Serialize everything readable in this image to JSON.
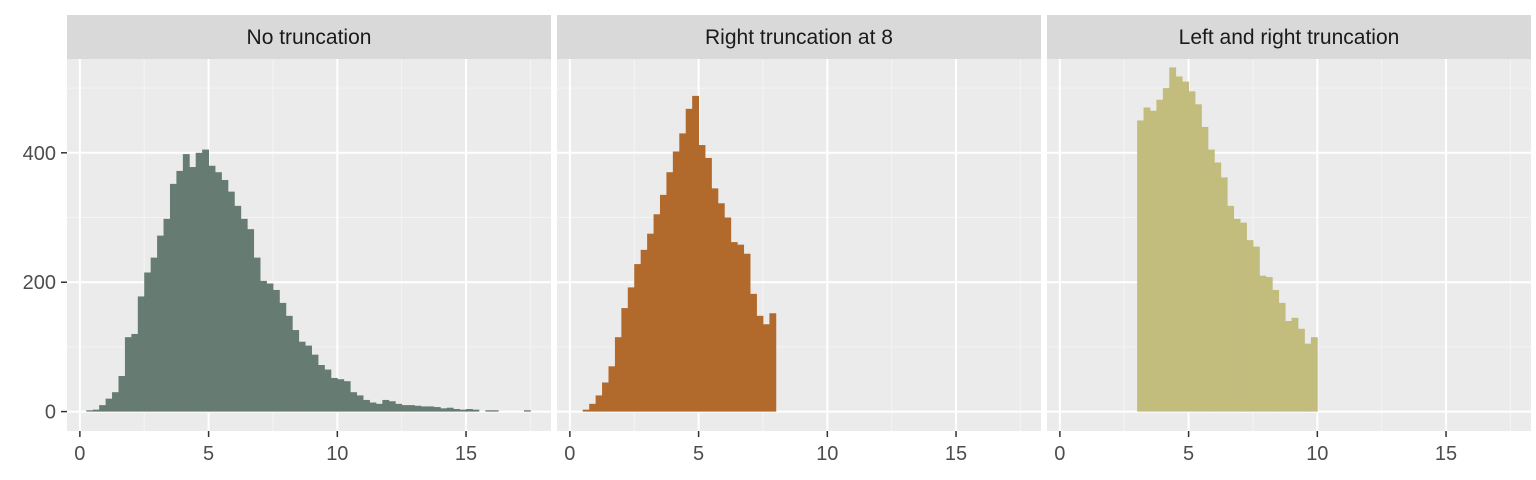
{
  "chart_data": [
    {
      "type": "bar",
      "title": "No truncation",
      "xlabel": "",
      "ylabel": "",
      "xlim": [
        -0.5,
        18.3
      ],
      "ylim": [
        -30,
        545
      ],
      "xticks": [
        0,
        5,
        10,
        15
      ],
      "yticks": [
        0,
        200,
        400
      ],
      "grid": true,
      "binwidth": 0.25,
      "color": "#667B71",
      "x": [
        0.25,
        0.5,
        0.75,
        1.0,
        1.25,
        1.5,
        1.75,
        2.0,
        2.25,
        2.5,
        2.75,
        3.0,
        3.25,
        3.5,
        3.75,
        4.0,
        4.25,
        4.5,
        4.75,
        5.0,
        5.25,
        5.5,
        5.75,
        6.0,
        6.25,
        6.5,
        6.75,
        7.0,
        7.25,
        7.5,
        7.75,
        8.0,
        8.25,
        8.5,
        8.75,
        9.0,
        9.25,
        9.5,
        9.75,
        10.0,
        10.25,
        10.5,
        10.75,
        11.0,
        11.25,
        11.5,
        11.75,
        12.0,
        12.25,
        12.5,
        12.75,
        13.0,
        13.25,
        13.5,
        13.75,
        14.0,
        14.25,
        14.5,
        14.75,
        15.0,
        15.25,
        15.75,
        16.0,
        17.25
      ],
      "values": [
        2,
        3,
        10,
        20,
        30,
        55,
        115,
        120,
        178,
        215,
        238,
        272,
        298,
        352,
        372,
        398,
        378,
        400,
        405,
        380,
        370,
        358,
        340,
        318,
        298,
        282,
        238,
        202,
        198,
        188,
        168,
        148,
        126,
        108,
        102,
        88,
        72,
        65,
        52,
        50,
        47,
        30,
        25,
        18,
        14,
        12,
        18,
        16,
        12,
        10,
        10,
        9,
        8,
        8,
        7,
        5,
        6,
        4,
        3,
        4,
        3,
        2,
        2,
        2
      ]
    },
    {
      "type": "bar",
      "title": "Right truncation at 8",
      "xlabel": "",
      "ylabel": "",
      "xlim": [
        -0.5,
        18.3
      ],
      "ylim": [
        -30,
        545
      ],
      "xticks": [
        0,
        5,
        10,
        15
      ],
      "yticks": [
        0,
        200,
        400
      ],
      "grid": true,
      "binwidth": 0.25,
      "color": "#B26A2C",
      "x": [
        0.5,
        0.75,
        1.0,
        1.25,
        1.5,
        1.75,
        2.0,
        2.25,
        2.5,
        2.75,
        3.0,
        3.25,
        3.5,
        3.75,
        4.0,
        4.25,
        4.5,
        4.75,
        5.0,
        5.25,
        5.5,
        5.75,
        6.0,
        6.25,
        6.5,
        6.75,
        7.0,
        7.25,
        7.5,
        7.75
      ],
      "values": [
        3,
        12,
        25,
        45,
        70,
        115,
        160,
        192,
        228,
        250,
        275,
        305,
        335,
        370,
        402,
        430,
        468,
        488,
        412,
        392,
        345,
        322,
        300,
        262,
        258,
        244,
        182,
        148,
        135,
        152
      ]
    },
    {
      "type": "bar",
      "title": "Left and right truncation",
      "xlabel": "",
      "ylabel": "",
      "xlim": [
        -0.5,
        18.3
      ],
      "ylim": [
        -30,
        545
      ],
      "xticks": [
        0,
        5,
        10,
        15
      ],
      "yticks": [
        0,
        200,
        400
      ],
      "grid": true,
      "binwidth": 0.25,
      "color": "#C2BC7D",
      "x": [
        3.0,
        3.25,
        3.5,
        3.75,
        4.0,
        4.25,
        4.5,
        4.75,
        5.0,
        5.25,
        5.5,
        5.75,
        6.0,
        6.25,
        6.5,
        6.75,
        7.0,
        7.25,
        7.5,
        7.75,
        8.0,
        8.25,
        8.5,
        8.75,
        9.0,
        9.25,
        9.5,
        9.75
      ],
      "values": [
        450,
        470,
        465,
        482,
        500,
        532,
        518,
        510,
        495,
        475,
        440,
        405,
        385,
        362,
        318,
        298,
        292,
        265,
        255,
        210,
        208,
        188,
        168,
        140,
        145,
        128,
        105,
        115
      ]
    }
  ]
}
